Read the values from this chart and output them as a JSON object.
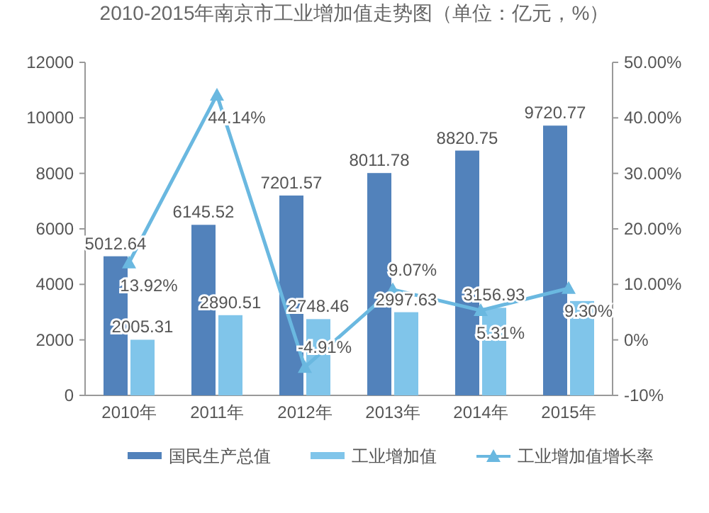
{
  "chart_data": {
    "type": "bar",
    "title": "2010-2015年南京市工业增加值走势图（单位：亿元，%）",
    "categories": [
      "2010年",
      "2011年",
      "2012年",
      "2013年",
      "2014年",
      "2015年"
    ],
    "series": [
      {
        "name": "国民生产总值",
        "color": "#5282bb",
        "values": [
          5012.64,
          6145.52,
          7201.57,
          8011.78,
          8820.75,
          9720.77
        ],
        "value_labels": [
          "5012.64",
          "6145.52",
          "7201.57",
          "8011.78",
          "8820.75",
          "9720.77"
        ]
      },
      {
        "name": "工业增加值",
        "color": "#80c5ea",
        "values": [
          2005.31,
          2890.51,
          2748.46,
          2997.63,
          3156.93,
          3400
        ],
        "value_labels": [
          "2005.31",
          "2890.51",
          "2748.46",
          "2997.63",
          "3156.93",
          null
        ]
      },
      {
        "name": "工业增加值增长率",
        "type": "line",
        "axis": "y2",
        "color": "#6ab8e0",
        "marker": "triangle",
        "values": [
          13.92,
          44.14,
          -4.91,
          9.07,
          5.31,
          9.3
        ],
        "value_labels": [
          "13.92%",
          "44.14%",
          "-4.91%",
          "9.07%",
          "5.31%",
          "9.30%"
        ]
      }
    ],
    "ylim": [
      0,
      12000
    ],
    "yticks": [
      0,
      2000,
      4000,
      6000,
      8000,
      10000,
      12000
    ],
    "y2lim": [
      -10,
      50
    ],
    "y2ticks": [
      {
        "value": -10,
        "label": "-10%"
      },
      {
        "value": 0,
        "label": "0%"
      },
      {
        "value": 10,
        "label": "10.00%"
      },
      {
        "value": 20,
        "label": "20.00%"
      },
      {
        "value": 30,
        "label": "30.00%"
      },
      {
        "value": 40,
        "label": "40.00%"
      },
      {
        "value": 50,
        "label": "50.00%"
      }
    ],
    "grid": false,
    "legend": "bottom"
  }
}
